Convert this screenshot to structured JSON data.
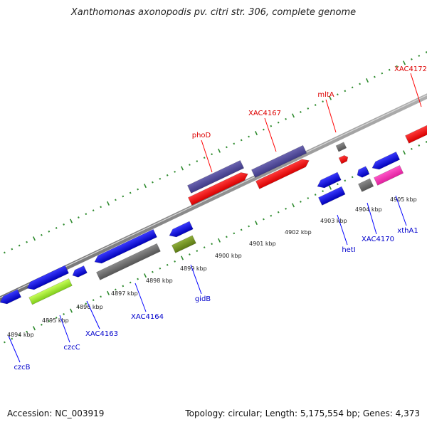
{
  "title": "Xanthomonas axonopodis pv. citri str. 306, complete genome",
  "footer": {
    "accession": "Accession: NC_003919",
    "stats": "Topology: circular; Length: 5,175,554 bp; Genes: 4,373"
  },
  "colors": {
    "backbone": "#8c8c8c",
    "tick": "#2e8b2e",
    "label_forward": "#dd0000",
    "label_reverse": "#0000cc",
    "leader_forward": "#ff0000",
    "leader_reverse": "#0000ff"
  },
  "kbp_labels": [
    "4894 kbp",
    "4895 kbp",
    "4896 kbp",
    "4897 kbp",
    "4898 kbp",
    "4899 kbp",
    "4900 kbp",
    "4901 kbp",
    "4902 kbp",
    "4903 kbp",
    "4904 kbp",
    "4905 kbp"
  ],
  "genes": [
    {
      "name": "XAC4172",
      "strand": "forward"
    },
    {
      "name": "mltA",
      "strand": "forward"
    },
    {
      "name": "XAC4167",
      "strand": "forward"
    },
    {
      "name": "phoD",
      "strand": "forward"
    },
    {
      "name": "czcB",
      "strand": "reverse"
    },
    {
      "name": "czcC",
      "strand": "reverse"
    },
    {
      "name": "XAC4163",
      "strand": "reverse"
    },
    {
      "name": "XAC4164",
      "strand": "reverse"
    },
    {
      "name": "gidB",
      "strand": "reverse"
    },
    {
      "name": "hetI",
      "strand": "reverse"
    },
    {
      "name": "XAC4170",
      "strand": "reverse"
    },
    {
      "name": "xthA1",
      "strand": "reverse"
    }
  ]
}
